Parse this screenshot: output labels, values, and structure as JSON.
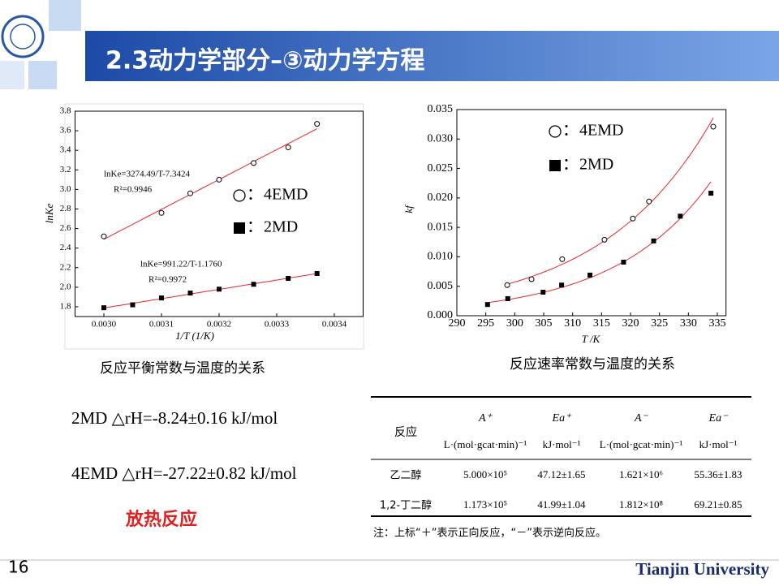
{
  "header": {
    "title": "2.3动力学部分–③动力学方程"
  },
  "chart_data": [
    {
      "type": "scatter",
      "x_label": "1/T (1/K)",
      "y_label": "lnKe",
      "xlim": [
        0.00295,
        0.00345
      ],
      "xticks": [
        {
          "value": 0.003,
          "label": "0.0030"
        },
        0.0031,
        0.0032,
        0.0033,
        0.0034
      ],
      "ylim": [
        1.7,
        3.8
      ],
      "yticks": [
        1.8,
        {
          "value": 2,
          "label": "2.0"
        },
        2.2,
        2.4,
        2.6,
        2.8,
        {
          "value": 3,
          "label": "3.0"
        },
        3.2,
        3.4,
        3.6,
        3.8
      ],
      "fit": "linear",
      "fit_color": "#e8262b",
      "legend_separator": "：",
      "series": [
        {
          "name": "4EMD",
          "marker": "circle",
          "color": "#000000",
          "x": [
            0.003,
            0.0031,
            0.00315,
            0.0032,
            0.00326,
            0.00332,
            0.00337
          ],
          "values": [
            2.52,
            2.76,
            2.96,
            3.1,
            3.27,
            3.43,
            3.67
          ]
        },
        {
          "name": "2MD",
          "marker": "square",
          "color": "#000000",
          "x": [
            0.003,
            0.00305,
            0.0031,
            0.00315,
            0.0032,
            0.00326,
            0.00332,
            0.00337
          ],
          "values": [
            1.79,
            1.82,
            1.89,
            1.94,
            1.98,
            2.03,
            2.09,
            2.14
          ]
        }
      ],
      "annotations": [
        "lnKe=3274.49/T-7.3424",
        "R²=0.9946",
        "lnKe=991.22/T-1.1760",
        "R²=0.9972"
      ]
    },
    {
      "type": "scatter",
      "x_label": "T /K",
      "y_label": "kf",
      "xlim": [
        290,
        336.5
      ],
      "xticks": [
        290,
        295,
        300,
        305,
        310,
        315,
        320,
        325,
        330,
        335
      ],
      "ylim": [
        0,
        0.035
      ],
      "yticks": [
        {
          "value": 0,
          "label": "0.000"
        },
        0.005,
        {
          "value": 0.01,
          "label": "0.010"
        },
        0.015,
        {
          "value": 0.02,
          "label": "0.020"
        },
        0.025,
        {
          "value": 0.03,
          "label": "0.030"
        },
        0.035
      ],
      "fit": "exponential",
      "fit_color": "#e8262b",
      "legend_separator": "：",
      "series": [
        {
          "name": "4EMD",
          "marker": "circle",
          "color": "#000000",
          "x": [
            298.7,
            302.9,
            308.2,
            315.5,
            320.4,
            323.2,
            334.3
          ],
          "values": [
            0.0052,
            0.0062,
            0.0096,
            0.0129,
            0.0165,
            0.0194,
            0.0321
          ]
        },
        {
          "name": "2MD",
          "marker": "square",
          "color": "#000000",
          "x": [
            295.3,
            298.8,
            304.9,
            308.1,
            313.0,
            318.8,
            324.0,
            328.6,
            333.9
          ],
          "values": [
            0.0019,
            0.0029,
            0.004,
            0.0052,
            0.0069,
            0.0091,
            0.0127,
            0.0169,
            0.0208
          ]
        }
      ],
      "annotations": []
    }
  ],
  "captions": [
    "反应平衡常数与温度的关系",
    "反应速率常数与温度的关系"
  ],
  "equations": [
    "2MD △rH=-8.24±0.16 kJ/mol",
    "4EMD △rH=-27.22±0.82 kJ/mol"
  ],
  "conclusion": "放热反应",
  "table": {
    "header": [
      "反应",
      "A⁺",
      "Ea⁺",
      "A⁻",
      "Ea⁻"
    ],
    "units": [
      "L·(mol·gcat·min)⁻¹",
      "kJ·mol⁻¹",
      "L·(mol·gcat·min)⁻¹",
      "kJ·mol⁻¹"
    ],
    "rows": [
      [
        "乙二醇",
        "5.000×10⁵",
        "47.12±1.65",
        "1.621×10⁶",
        "55.36±1.83"
      ],
      [
        "1,2-丁二醇",
        "1.173×10⁵",
        "41.99±1.04",
        "1.812×10⁸",
        "69.21±0.85"
      ]
    ]
  },
  "note": "注：上标“＋”表示正向反应，“－”表示逆向反应。",
  "footer": {
    "page": "16",
    "institution": "Tianjin University"
  }
}
